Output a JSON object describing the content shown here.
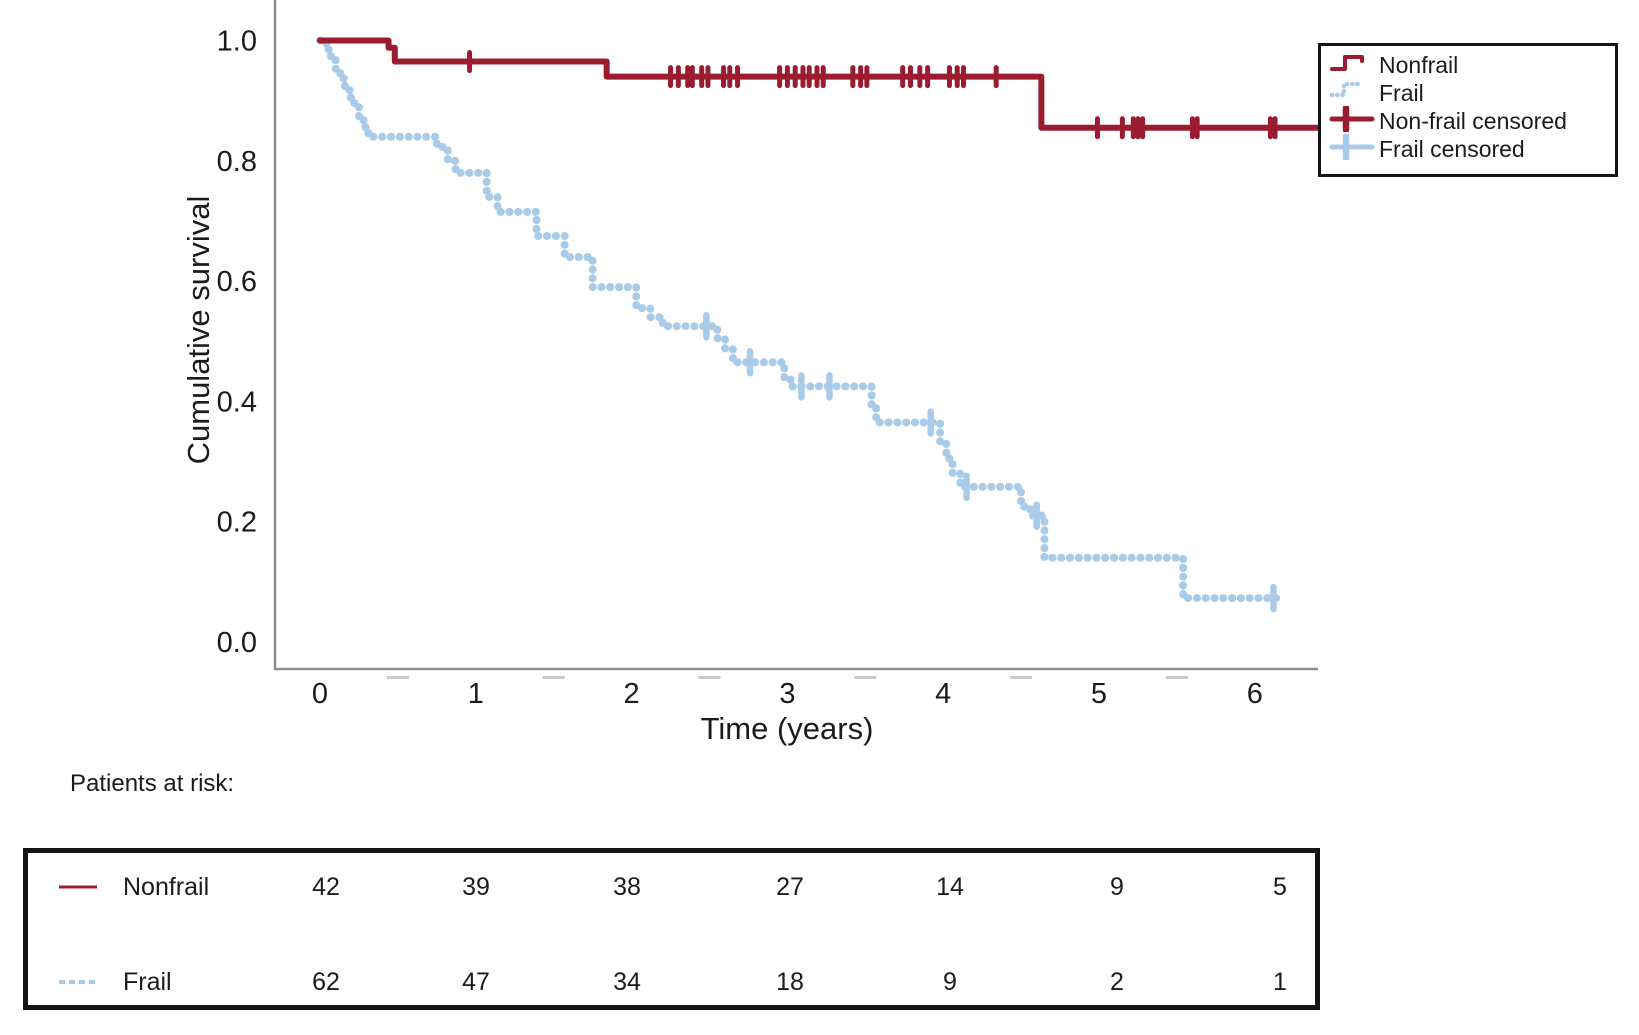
{
  "chart_data": {
    "type": "line",
    "subtype": "kaplan_meier_step",
    "title": "",
    "xlabel": "Time (years)",
    "ylabel": "Cumulative survival",
    "xlim": [
      0,
      6.5
    ],
    "ylim": [
      0,
      1.0
    ],
    "xticks": [
      "0",
      "1",
      "2",
      "3",
      "4",
      "5",
      "6"
    ],
    "yticks": [
      "0.0",
      "0.2",
      "0.4",
      "0.6",
      "0.8",
      "1.0"
    ],
    "grid": false,
    "legend_position": "top-right",
    "series": [
      {
        "name": "Nonfrail",
        "color": "#9b1c31",
        "style": "solid",
        "end_time": 6.4,
        "steps": [
          [
            0,
            1.0
          ],
          [
            0.44,
            0.988
          ],
          [
            0.48,
            0.965
          ],
          [
            1.84,
            0.94
          ],
          [
            4.63,
            0.855
          ]
        ]
      },
      {
        "name": "Frail",
        "color": "#a9cbe8",
        "style": "dotted",
        "end_time": 6.16,
        "steps": [
          [
            0,
            1.0
          ],
          [
            0.04,
            0.985
          ],
          [
            0.07,
            0.969
          ],
          [
            0.1,
            0.953
          ],
          [
            0.13,
            0.937
          ],
          [
            0.16,
            0.921
          ],
          [
            0.19,
            0.905
          ],
          [
            0.22,
            0.889
          ],
          [
            0.25,
            0.873
          ],
          [
            0.28,
            0.856
          ],
          [
            0.31,
            0.84
          ],
          [
            0.75,
            0.823
          ],
          [
            0.82,
            0.8
          ],
          [
            0.87,
            0.78
          ],
          [
            1.07,
            0.74
          ],
          [
            1.14,
            0.715
          ],
          [
            1.39,
            0.675
          ],
          [
            1.57,
            0.64
          ],
          [
            1.75,
            0.59
          ],
          [
            2.03,
            0.555
          ],
          [
            2.12,
            0.54
          ],
          [
            2.2,
            0.525
          ],
          [
            2.55,
            0.505
          ],
          [
            2.6,
            0.487
          ],
          [
            2.65,
            0.465
          ],
          [
            2.98,
            0.437
          ],
          [
            3.02,
            0.425
          ],
          [
            3.54,
            0.39
          ],
          [
            3.57,
            0.365
          ],
          [
            3.98,
            0.33
          ],
          [
            4.02,
            0.305
          ],
          [
            4.06,
            0.28
          ],
          [
            4.11,
            0.258
          ],
          [
            4.5,
            0.225
          ],
          [
            4.56,
            0.21
          ],
          [
            4.65,
            0.14
          ],
          [
            5.54,
            0.073
          ]
        ]
      }
    ],
    "censored": [
      {
        "name": "Non-frail censored",
        "color": "#9b1c31",
        "style": "solid",
        "points": [
          [
            0.96,
            0.965
          ],
          [
            2.25,
            0.94
          ],
          [
            2.3,
            0.94
          ],
          [
            2.36,
            0.94
          ],
          [
            2.39,
            0.94
          ],
          [
            2.45,
            0.94
          ],
          [
            2.49,
            0.94
          ],
          [
            2.59,
            0.94
          ],
          [
            2.63,
            0.94
          ],
          [
            2.68,
            0.94
          ],
          [
            2.95,
            0.94
          ],
          [
            3.0,
            0.94
          ],
          [
            3.05,
            0.94
          ],
          [
            3.1,
            0.94
          ],
          [
            3.14,
            0.94
          ],
          [
            3.19,
            0.94
          ],
          [
            3.23,
            0.94
          ],
          [
            3.42,
            0.94
          ],
          [
            3.47,
            0.94
          ],
          [
            3.51,
            0.94
          ],
          [
            3.74,
            0.94
          ],
          [
            3.79,
            0.94
          ],
          [
            3.85,
            0.94
          ],
          [
            3.9,
            0.94
          ],
          [
            4.04,
            0.94
          ],
          [
            4.09,
            0.94
          ],
          [
            4.13,
            0.94
          ],
          [
            4.34,
            0.94
          ],
          [
            4.99,
            0.855
          ],
          [
            5.15,
            0.855
          ],
          [
            5.22,
            0.855
          ],
          [
            5.25,
            0.855
          ],
          [
            5.28,
            0.855
          ],
          [
            5.6,
            0.855
          ],
          [
            5.63,
            0.855
          ],
          [
            6.1,
            0.855
          ],
          [
            6.13,
            0.855
          ]
        ]
      },
      {
        "name": "Frail censored",
        "color": "#a9cbe8",
        "style": "dotted",
        "points": [
          [
            2.48,
            0.525
          ],
          [
            2.76,
            0.465
          ],
          [
            3.09,
            0.425
          ],
          [
            3.27,
            0.425
          ],
          [
            3.92,
            0.365
          ],
          [
            4.15,
            0.258
          ],
          [
            4.6,
            0.21
          ],
          [
            6.12,
            0.073
          ]
        ]
      }
    ],
    "legend": [
      {
        "label": "Nonfrail",
        "swatch": "step-solid",
        "color": "#9b1c31"
      },
      {
        "label": "Frail",
        "swatch": "step-dotted",
        "color": "#a9cbe8"
      },
      {
        "label": "Non-frail censored",
        "swatch": "line-plus",
        "color": "#9b1c31"
      },
      {
        "label": "Frail censored",
        "swatch": "line-plus",
        "color": "#a9cbe8"
      }
    ]
  },
  "risk_table": {
    "title": "Patients at risk:",
    "time_points": [
      "0",
      "1",
      "2",
      "3",
      "4",
      "5",
      "6"
    ],
    "rows": [
      {
        "label": "Nonfrail",
        "swatch": "line-solid",
        "color": "#9b1c31",
        "values": [
          "42",
          "39",
          "38",
          "27",
          "14",
          "9",
          "5"
        ]
      },
      {
        "label": "Frail",
        "swatch": "line-dashed",
        "color": "#a9cbe8",
        "values": [
          "62",
          "47",
          "34",
          "18",
          "9",
          "2",
          "1"
        ]
      }
    ]
  },
  "colors": {
    "nonfrail": "#9b1c31",
    "frail": "#a9cbe8",
    "axis": "#8d8d8d",
    "text": "#1b1b1b"
  }
}
